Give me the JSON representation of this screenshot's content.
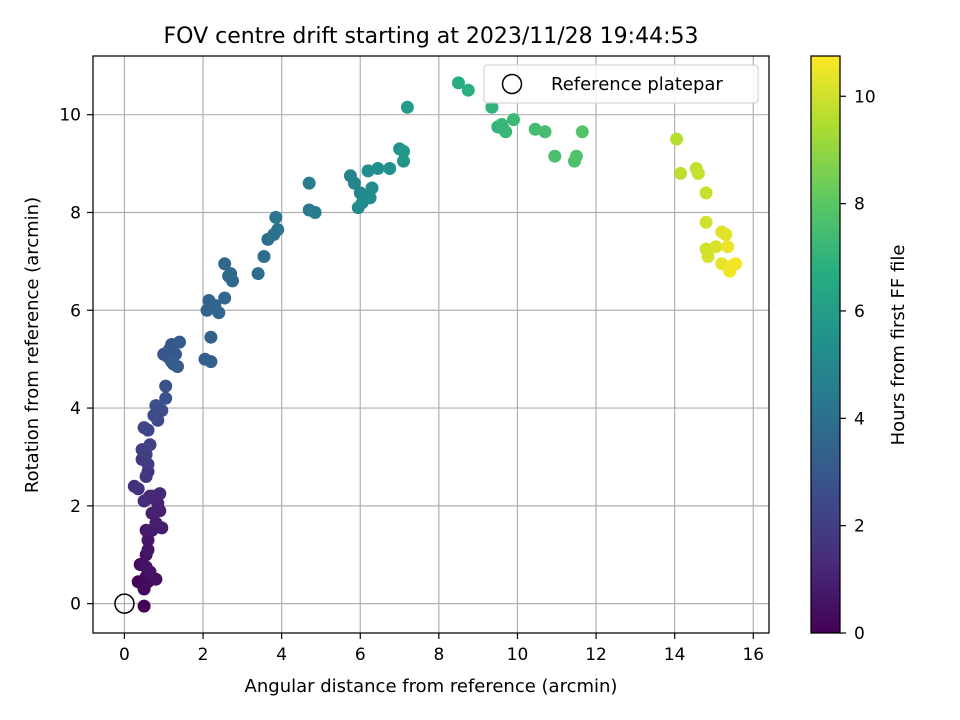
{
  "chart_data": {
    "type": "scatter",
    "title": "FOV centre drift starting at 2023/11/28 19:44:53",
    "xlabel": "Angular distance from reference (arcmin)",
    "ylabel": "Rotation from reference (arcmin)",
    "xlim": [
      -0.8,
      16.4
    ],
    "ylim": [
      -0.6,
      11.2
    ],
    "xticks": [
      0,
      2,
      4,
      6,
      8,
      10,
      12,
      14,
      16
    ],
    "yticks": [
      0,
      2,
      4,
      6,
      8,
      10
    ],
    "grid": true,
    "legend": {
      "position": "top-right",
      "entries": [
        "Reference platepar"
      ]
    },
    "reference_point": {
      "x": 0,
      "y": 0
    },
    "colorbar": {
      "label": "Hours from first FF file",
      "min": 0,
      "max": 10.75,
      "ticks": [
        0,
        2,
        4,
        6,
        8,
        10
      ],
      "colormap": "viridis"
    },
    "points": [
      [
        0.5,
        -0.05,
        0.02
      ],
      [
        0.35,
        0.45,
        0.1
      ],
      [
        0.45,
        0.4,
        0.15
      ],
      [
        0.4,
        0.8,
        0.2
      ],
      [
        0.5,
        0.3,
        0.25
      ],
      [
        0.55,
        0.55,
        0.3
      ],
      [
        0.6,
        0.45,
        0.35
      ],
      [
        0.8,
        0.5,
        0.4
      ],
      [
        0.45,
        0.8,
        0.45
      ],
      [
        0.55,
        1.0,
        0.5
      ],
      [
        0.55,
        0.75,
        0.55
      ],
      [
        0.65,
        0.65,
        0.6
      ],
      [
        0.6,
        1.1,
        0.65
      ],
      [
        0.6,
        1.3,
        0.7
      ],
      [
        0.55,
        1.5,
        0.75
      ],
      [
        0.7,
        1.5,
        0.8
      ],
      [
        0.95,
        1.55,
        0.85
      ],
      [
        0.8,
        1.65,
        0.9
      ],
      [
        0.9,
        1.9,
        0.95
      ],
      [
        0.7,
        1.85,
        1.0
      ],
      [
        0.85,
        2.05,
        1.05
      ],
      [
        0.65,
        2.2,
        1.1
      ],
      [
        0.6,
        2.15,
        1.15
      ],
      [
        0.75,
        2.2,
        1.2
      ],
      [
        0.9,
        2.25,
        1.25
      ],
      [
        0.5,
        2.1,
        1.35
      ],
      [
        0.25,
        2.4,
        1.45
      ],
      [
        0.35,
        2.35,
        1.55
      ],
      [
        0.6,
        2.7,
        1.6
      ],
      [
        0.55,
        2.6,
        1.7
      ],
      [
        0.45,
        2.95,
        1.8
      ],
      [
        0.6,
        2.85,
        1.9
      ],
      [
        0.45,
        3.15,
        2.0
      ],
      [
        0.55,
        3.05,
        2.05
      ],
      [
        0.65,
        3.25,
        2.15
      ],
      [
        0.5,
        3.6,
        2.25
      ],
      [
        0.6,
        3.55,
        2.3
      ],
      [
        0.85,
        3.75,
        2.4
      ],
      [
        0.75,
        3.85,
        2.5
      ],
      [
        0.95,
        3.95,
        2.55
      ],
      [
        0.8,
        4.05,
        2.6
      ],
      [
        1.05,
        4.45,
        2.7
      ],
      [
        1.05,
        4.2,
        2.75
      ],
      [
        1.0,
        5.1,
        2.8
      ],
      [
        1.1,
        5.05,
        2.85
      ],
      [
        1.2,
        5.3,
        2.9
      ],
      [
        1.15,
        5.2,
        2.95
      ],
      [
        1.3,
        5.1,
        3.0
      ],
      [
        1.4,
        5.35,
        3.05
      ],
      [
        1.25,
        4.9,
        3.1
      ],
      [
        1.35,
        4.85,
        3.15
      ],
      [
        1.2,
        4.95,
        3.2
      ],
      [
        2.05,
        5.0,
        3.25
      ],
      [
        2.2,
        4.95,
        3.3
      ],
      [
        2.2,
        5.45,
        3.35
      ],
      [
        2.1,
        6.0,
        3.4
      ],
      [
        2.15,
        6.2,
        3.45
      ],
      [
        2.3,
        6.1,
        3.5
      ],
      [
        2.4,
        5.95,
        3.55
      ],
      [
        2.55,
        6.25,
        3.6
      ],
      [
        2.55,
        6.95,
        3.65
      ],
      [
        2.65,
        6.7,
        3.7
      ],
      [
        2.75,
        6.6,
        3.75
      ],
      [
        2.7,
        6.75,
        3.8
      ],
      [
        3.4,
        6.75,
        3.85
      ],
      [
        3.55,
        7.1,
        3.9
      ],
      [
        3.65,
        7.45,
        4.0
      ],
      [
        3.8,
        7.55,
        4.05
      ],
      [
        3.9,
        7.65,
        4.1
      ],
      [
        3.85,
        7.9,
        4.2
      ],
      [
        4.7,
        8.05,
        4.4
      ],
      [
        4.85,
        8.0,
        4.5
      ],
      [
        4.7,
        8.6,
        4.6
      ],
      [
        5.75,
        8.75,
        4.8
      ],
      [
        5.85,
        8.6,
        4.9
      ],
      [
        6.0,
        8.4,
        5.0
      ],
      [
        5.95,
        8.1,
        5.05
      ],
      [
        6.05,
        8.2,
        5.1
      ],
      [
        6.2,
        8.35,
        5.15
      ],
      [
        6.25,
        8.3,
        5.2
      ],
      [
        6.3,
        8.5,
        5.25
      ],
      [
        6.2,
        8.85,
        5.3
      ],
      [
        6.45,
        8.9,
        5.35
      ],
      [
        6.75,
        8.9,
        5.4
      ],
      [
        7.0,
        9.3,
        5.5
      ],
      [
        7.1,
        9.05,
        5.6
      ],
      [
        7.1,
        9.25,
        5.7
      ],
      [
        7.2,
        10.15,
        5.9
      ],
      [
        8.5,
        10.65,
        6.7
      ],
      [
        8.75,
        10.5,
        6.8
      ],
      [
        9.35,
        10.15,
        7.0
      ],
      [
        9.5,
        9.75,
        7.05
      ],
      [
        9.65,
        9.7,
        7.1
      ],
      [
        9.6,
        9.8,
        7.15
      ],
      [
        9.7,
        9.65,
        7.2
      ],
      [
        9.9,
        9.9,
        7.25
      ],
      [
        10.45,
        9.7,
        7.45
      ],
      [
        10.7,
        9.65,
        7.5
      ],
      [
        10.95,
        9.15,
        7.6
      ],
      [
        11.45,
        9.05,
        7.7
      ],
      [
        11.5,
        9.15,
        7.75
      ],
      [
        11.65,
        9.65,
        7.8
      ],
      [
        14.05,
        9.5,
        9.6
      ],
      [
        14.15,
        8.8,
        9.7
      ],
      [
        14.55,
        8.9,
        9.8
      ],
      [
        14.6,
        8.8,
        9.85
      ],
      [
        14.8,
        8.4,
        9.9
      ],
      [
        14.8,
        7.8,
        10.0
      ],
      [
        14.8,
        7.25,
        10.05
      ],
      [
        14.85,
        7.1,
        10.1
      ],
      [
        15.05,
        7.3,
        10.2
      ],
      [
        15.2,
        7.6,
        10.25
      ],
      [
        15.3,
        7.55,
        10.3
      ],
      [
        15.2,
        6.95,
        10.4
      ],
      [
        15.35,
        7.3,
        10.45
      ],
      [
        15.4,
        6.8,
        10.5
      ],
      [
        15.45,
        6.9,
        10.55
      ],
      [
        15.55,
        6.95,
        10.6
      ]
    ]
  }
}
